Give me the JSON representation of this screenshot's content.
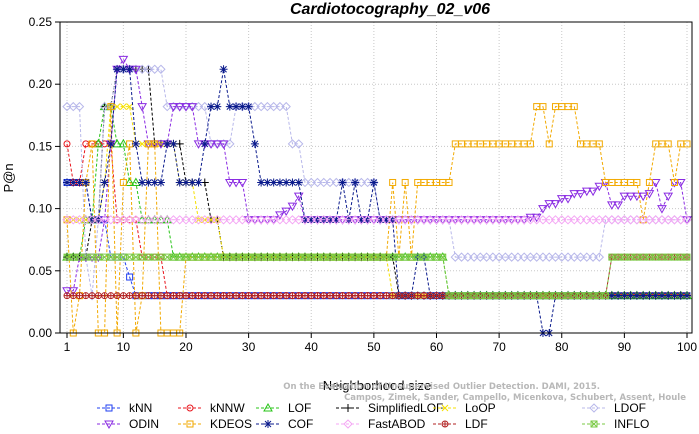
{
  "chart_data": {
    "type": "line",
    "title": "Cardiotocography_02_v06",
    "xlabel": "Neighborhood size",
    "ylabel": "P@n",
    "xlim": [
      1,
      100
    ],
    "ylim": [
      0,
      0.25
    ],
    "xticks": [
      "1",
      "10",
      "20",
      "30",
      "40",
      "50",
      "60",
      "70",
      "80",
      "90",
      "100"
    ],
    "yticks": [
      "0.00",
      "0.05",
      "0.10",
      "0.15",
      "0.20",
      "0.25"
    ],
    "grid": true,
    "legend_position": "bottom",
    "credit_lines": [
      "Campos, Zimek, Sander, Campello, Micenkova, Schubert, Assent, Houle",
      "On the Evaluation of Unsupervised Outlier Detection. DAMI, 2015."
    ],
    "series": [
      {
        "name": "kNN",
        "color": "#1f3ff0",
        "marker": "square",
        "points": [
          [
            1,
            0.121
          ],
          [
            4,
            0.121
          ],
          [
            5,
            0.091
          ],
          [
            7,
            0.091
          ],
          [
            8,
            0.061
          ],
          [
            10,
            0.061
          ],
          [
            11,
            0.045
          ],
          [
            12,
            0.03
          ],
          [
            100,
            0.03
          ]
        ]
      },
      {
        "name": "kNNW",
        "color": "#e8141c",
        "marker": "circle",
        "points": [
          [
            1,
            0.152
          ],
          [
            2,
            0.121
          ],
          [
            3,
            0.121
          ],
          [
            4,
            0.152
          ],
          [
            8,
            0.152
          ],
          [
            9,
            0.091
          ],
          [
            12,
            0.091
          ],
          [
            13,
            0.061
          ],
          [
            16,
            0.061
          ],
          [
            17,
            0.03
          ],
          [
            100,
            0.03
          ]
        ]
      },
      {
        "name": "LOF",
        "color": "#27c417",
        "marker": "triangle-up",
        "points": [
          [
            1,
            0.061
          ],
          [
            4,
            0.091
          ],
          [
            6,
            0.152
          ],
          [
            7,
            0.182
          ],
          [
            9,
            0.152
          ],
          [
            10,
            0.152
          ],
          [
            11,
            0.121
          ],
          [
            12,
            0.121
          ],
          [
            13,
            0.091
          ],
          [
            17,
            0.091
          ],
          [
            18,
            0.061
          ],
          [
            61,
            0.061
          ],
          [
            62,
            0.03
          ],
          [
            100,
            0.03
          ]
        ]
      },
      {
        "name": "SimplifiedLOF",
        "color": "#000000",
        "marker": "plus",
        "points": [
          [
            1,
            0.061
          ],
          [
            5,
            0.091
          ],
          [
            7,
            0.182
          ],
          [
            9,
            0.212
          ],
          [
            13,
            0.212
          ],
          [
            15,
            0.152
          ],
          [
            19,
            0.152
          ],
          [
            20,
            0.121
          ],
          [
            23,
            0.121
          ],
          [
            24,
            0.091
          ],
          [
            25,
            0.091
          ],
          [
            26,
            0.061
          ],
          [
            53,
            0.061
          ],
          [
            54,
            0.03
          ],
          [
            100,
            0.03
          ]
        ]
      },
      {
        "name": "LoOP",
        "color": "#f5e000",
        "marker": "x",
        "points": [
          [
            1,
            0.091
          ],
          [
            5,
            0.091
          ],
          [
            7,
            0.121
          ],
          [
            8,
            0.182
          ],
          [
            11,
            0.182
          ],
          [
            12,
            0.152
          ],
          [
            18,
            0.152
          ],
          [
            19,
            0.121
          ],
          [
            21,
            0.121
          ],
          [
            22,
            0.091
          ],
          [
            25,
            0.091
          ],
          [
            26,
            0.061
          ],
          [
            52,
            0.061
          ],
          [
            53,
            0.03
          ],
          [
            100,
            0.03
          ]
        ]
      },
      {
        "name": "LDOF",
        "color": "#b8b8ea",
        "marker": "diamond",
        "points": [
          [
            1,
            0.182
          ],
          [
            3,
            0.182
          ],
          [
            4,
            0.061
          ],
          [
            5,
            0.03
          ],
          [
            6,
            0.091
          ],
          [
            7,
            0.182
          ],
          [
            9,
            0.212
          ],
          [
            16,
            0.212
          ],
          [
            17,
            0.182
          ],
          [
            20,
            0.182
          ],
          [
            22,
            0.182
          ],
          [
            24,
            0.152
          ],
          [
            28,
            0.182
          ],
          [
            36,
            0.182
          ],
          [
            37,
            0.152
          ],
          [
            38,
            0.152
          ],
          [
            39,
            0.121
          ],
          [
            48,
            0.121
          ],
          [
            50,
            0.121
          ],
          [
            51,
            0.091
          ],
          [
            62,
            0.091
          ],
          [
            63,
            0.061
          ],
          [
            85,
            0.061
          ],
          [
            86,
            0.061
          ],
          [
            87,
            0.091
          ],
          [
            100,
            0.091
          ]
        ]
      },
      {
        "name": "ODIN",
        "color": "#8a2be2",
        "marker": "triangle-down",
        "points": [
          [
            1,
            0.034
          ],
          [
            3,
            0.061
          ],
          [
            5,
            0.061
          ],
          [
            7,
            0.091
          ],
          [
            8,
            0.152
          ],
          [
            9,
            0.212
          ],
          [
            10,
            0.22
          ],
          [
            11,
            0.212
          ],
          [
            12,
            0.212
          ],
          [
            13,
            0.182
          ],
          [
            14,
            0.152
          ],
          [
            17,
            0.152
          ],
          [
            18,
            0.182
          ],
          [
            21,
            0.182
          ],
          [
            22,
            0.152
          ],
          [
            25,
            0.152
          ],
          [
            27,
            0.121
          ],
          [
            29,
            0.121
          ],
          [
            30,
            0.091
          ],
          [
            34,
            0.091
          ],
          [
            35,
            0.095
          ],
          [
            36,
            0.098
          ],
          [
            37,
            0.102
          ],
          [
            38,
            0.11
          ],
          [
            39,
            0.091
          ],
          [
            62,
            0.091
          ],
          [
            74,
            0.091
          ],
          [
            75,
            0.093
          ],
          [
            77,
            0.1
          ],
          [
            78,
            0.104
          ],
          [
            80,
            0.108
          ],
          [
            82,
            0.112
          ],
          [
            84,
            0.114
          ],
          [
            86,
            0.118
          ],
          [
            87,
            0.121
          ],
          [
            88,
            0.103
          ],
          [
            90,
            0.11
          ],
          [
            92,
            0.11
          ],
          [
            94,
            0.112
          ],
          [
            95,
            0.121
          ],
          [
            96,
            0.1
          ],
          [
            97,
            0.11
          ],
          [
            98,
            0.121
          ],
          [
            100,
            0.091
          ]
        ]
      },
      {
        "name": "KDEOS",
        "color": "#f2a900",
        "marker": "square",
        "points": [
          [
            1,
            0.091
          ],
          [
            2,
            0.0
          ],
          [
            3,
            0.03
          ],
          [
            4,
            0.121
          ],
          [
            5,
            0.152
          ],
          [
            6,
            0.0
          ],
          [
            7,
            0.0
          ],
          [
            8,
            0.182
          ],
          [
            9,
            0.0
          ],
          [
            10,
            0.121
          ],
          [
            11,
            0.152
          ],
          [
            12,
            0.0
          ],
          [
            13,
            0.03
          ],
          [
            14,
            0.152
          ],
          [
            15,
            0.152
          ],
          [
            16,
            0.0
          ],
          [
            19,
            0.0
          ],
          [
            20,
            0.061
          ],
          [
            49,
            0.061
          ],
          [
            52,
            0.061
          ],
          [
            53,
            0.121
          ],
          [
            54,
            0.061
          ],
          [
            55,
            0.121
          ],
          [
            56,
            0.061
          ],
          [
            57,
            0.121
          ],
          [
            62,
            0.121
          ],
          [
            63,
            0.152
          ],
          [
            75,
            0.152
          ],
          [
            76,
            0.182
          ],
          [
            77,
            0.182
          ],
          [
            78,
            0.152
          ],
          [
            79,
            0.182
          ],
          [
            82,
            0.182
          ],
          [
            83,
            0.152
          ],
          [
            86,
            0.152
          ],
          [
            87,
            0.121
          ],
          [
            90,
            0.121
          ],
          [
            91,
            0.121
          ],
          [
            92,
            0.121
          ],
          [
            93,
            0.091
          ],
          [
            94,
            0.121
          ],
          [
            95,
            0.152
          ],
          [
            97,
            0.152
          ],
          [
            98,
            0.121
          ],
          [
            99,
            0.152
          ],
          [
            100,
            0.152
          ]
        ]
      },
      {
        "name": "COF",
        "color": "#0a1a8c",
        "marker": "asterisk",
        "points": [
          [
            1,
            0.121
          ],
          [
            4,
            0.121
          ],
          [
            5,
            0.091
          ],
          [
            6,
            0.091
          ],
          [
            7,
            0.121
          ],
          [
            8,
            0.152
          ],
          [
            9,
            0.212
          ],
          [
            11,
            0.212
          ],
          [
            12,
            0.152
          ],
          [
            13,
            0.121
          ],
          [
            16,
            0.121
          ],
          [
            17,
            0.152
          ],
          [
            18,
            0.152
          ],
          [
            19,
            0.121
          ],
          [
            22,
            0.121
          ],
          [
            23,
            0.152
          ],
          [
            24,
            0.182
          ],
          [
            25,
            0.182
          ],
          [
            26,
            0.212
          ],
          [
            27,
            0.182
          ],
          [
            30,
            0.182
          ],
          [
            31,
            0.152
          ],
          [
            32,
            0.121
          ],
          [
            38,
            0.121
          ],
          [
            39,
            0.091
          ],
          [
            44,
            0.091
          ],
          [
            45,
            0.121
          ],
          [
            46,
            0.091
          ],
          [
            47,
            0.121
          ],
          [
            48,
            0.091
          ],
          [
            49,
            0.091
          ],
          [
            50,
            0.121
          ],
          [
            51,
            0.091
          ],
          [
            53,
            0.091
          ],
          [
            54,
            0.03
          ],
          [
            56,
            0.03
          ],
          [
            57,
            0.061
          ],
          [
            58,
            0.061
          ],
          [
            59,
            0.03
          ],
          [
            76,
            0.03
          ],
          [
            77,
            0.0
          ],
          [
            78,
            0.0
          ],
          [
            79,
            0.03
          ],
          [
            100,
            0.03
          ]
        ]
      },
      {
        "name": "FastABOD",
        "color": "#f4a6f4",
        "marker": "diamond",
        "points": [
          [
            1,
            0.091
          ],
          [
            100,
            0.091
          ]
        ]
      },
      {
        "name": "LDF",
        "color": "#b22222",
        "marker": "circle-plus",
        "points": [
          [
            1,
            0.03
          ],
          [
            87,
            0.03
          ],
          [
            88,
            0.061
          ],
          [
            100,
            0.061
          ]
        ]
      },
      {
        "name": "INFLO",
        "color": "#7ac943",
        "marker": "square-x",
        "points": [
          [
            1,
            0.061
          ],
          [
            2,
            0.061
          ],
          [
            3,
            0.061
          ],
          [
            58,
            0.061
          ],
          [
            59,
            0.061
          ],
          [
            60,
            0.061
          ],
          [
            61,
            0.061
          ],
          [
            62,
            0.03
          ],
          [
            86,
            0.03
          ],
          [
            87,
            0.03
          ],
          [
            88,
            0.061
          ],
          [
            100,
            0.061
          ]
        ]
      }
    ]
  }
}
